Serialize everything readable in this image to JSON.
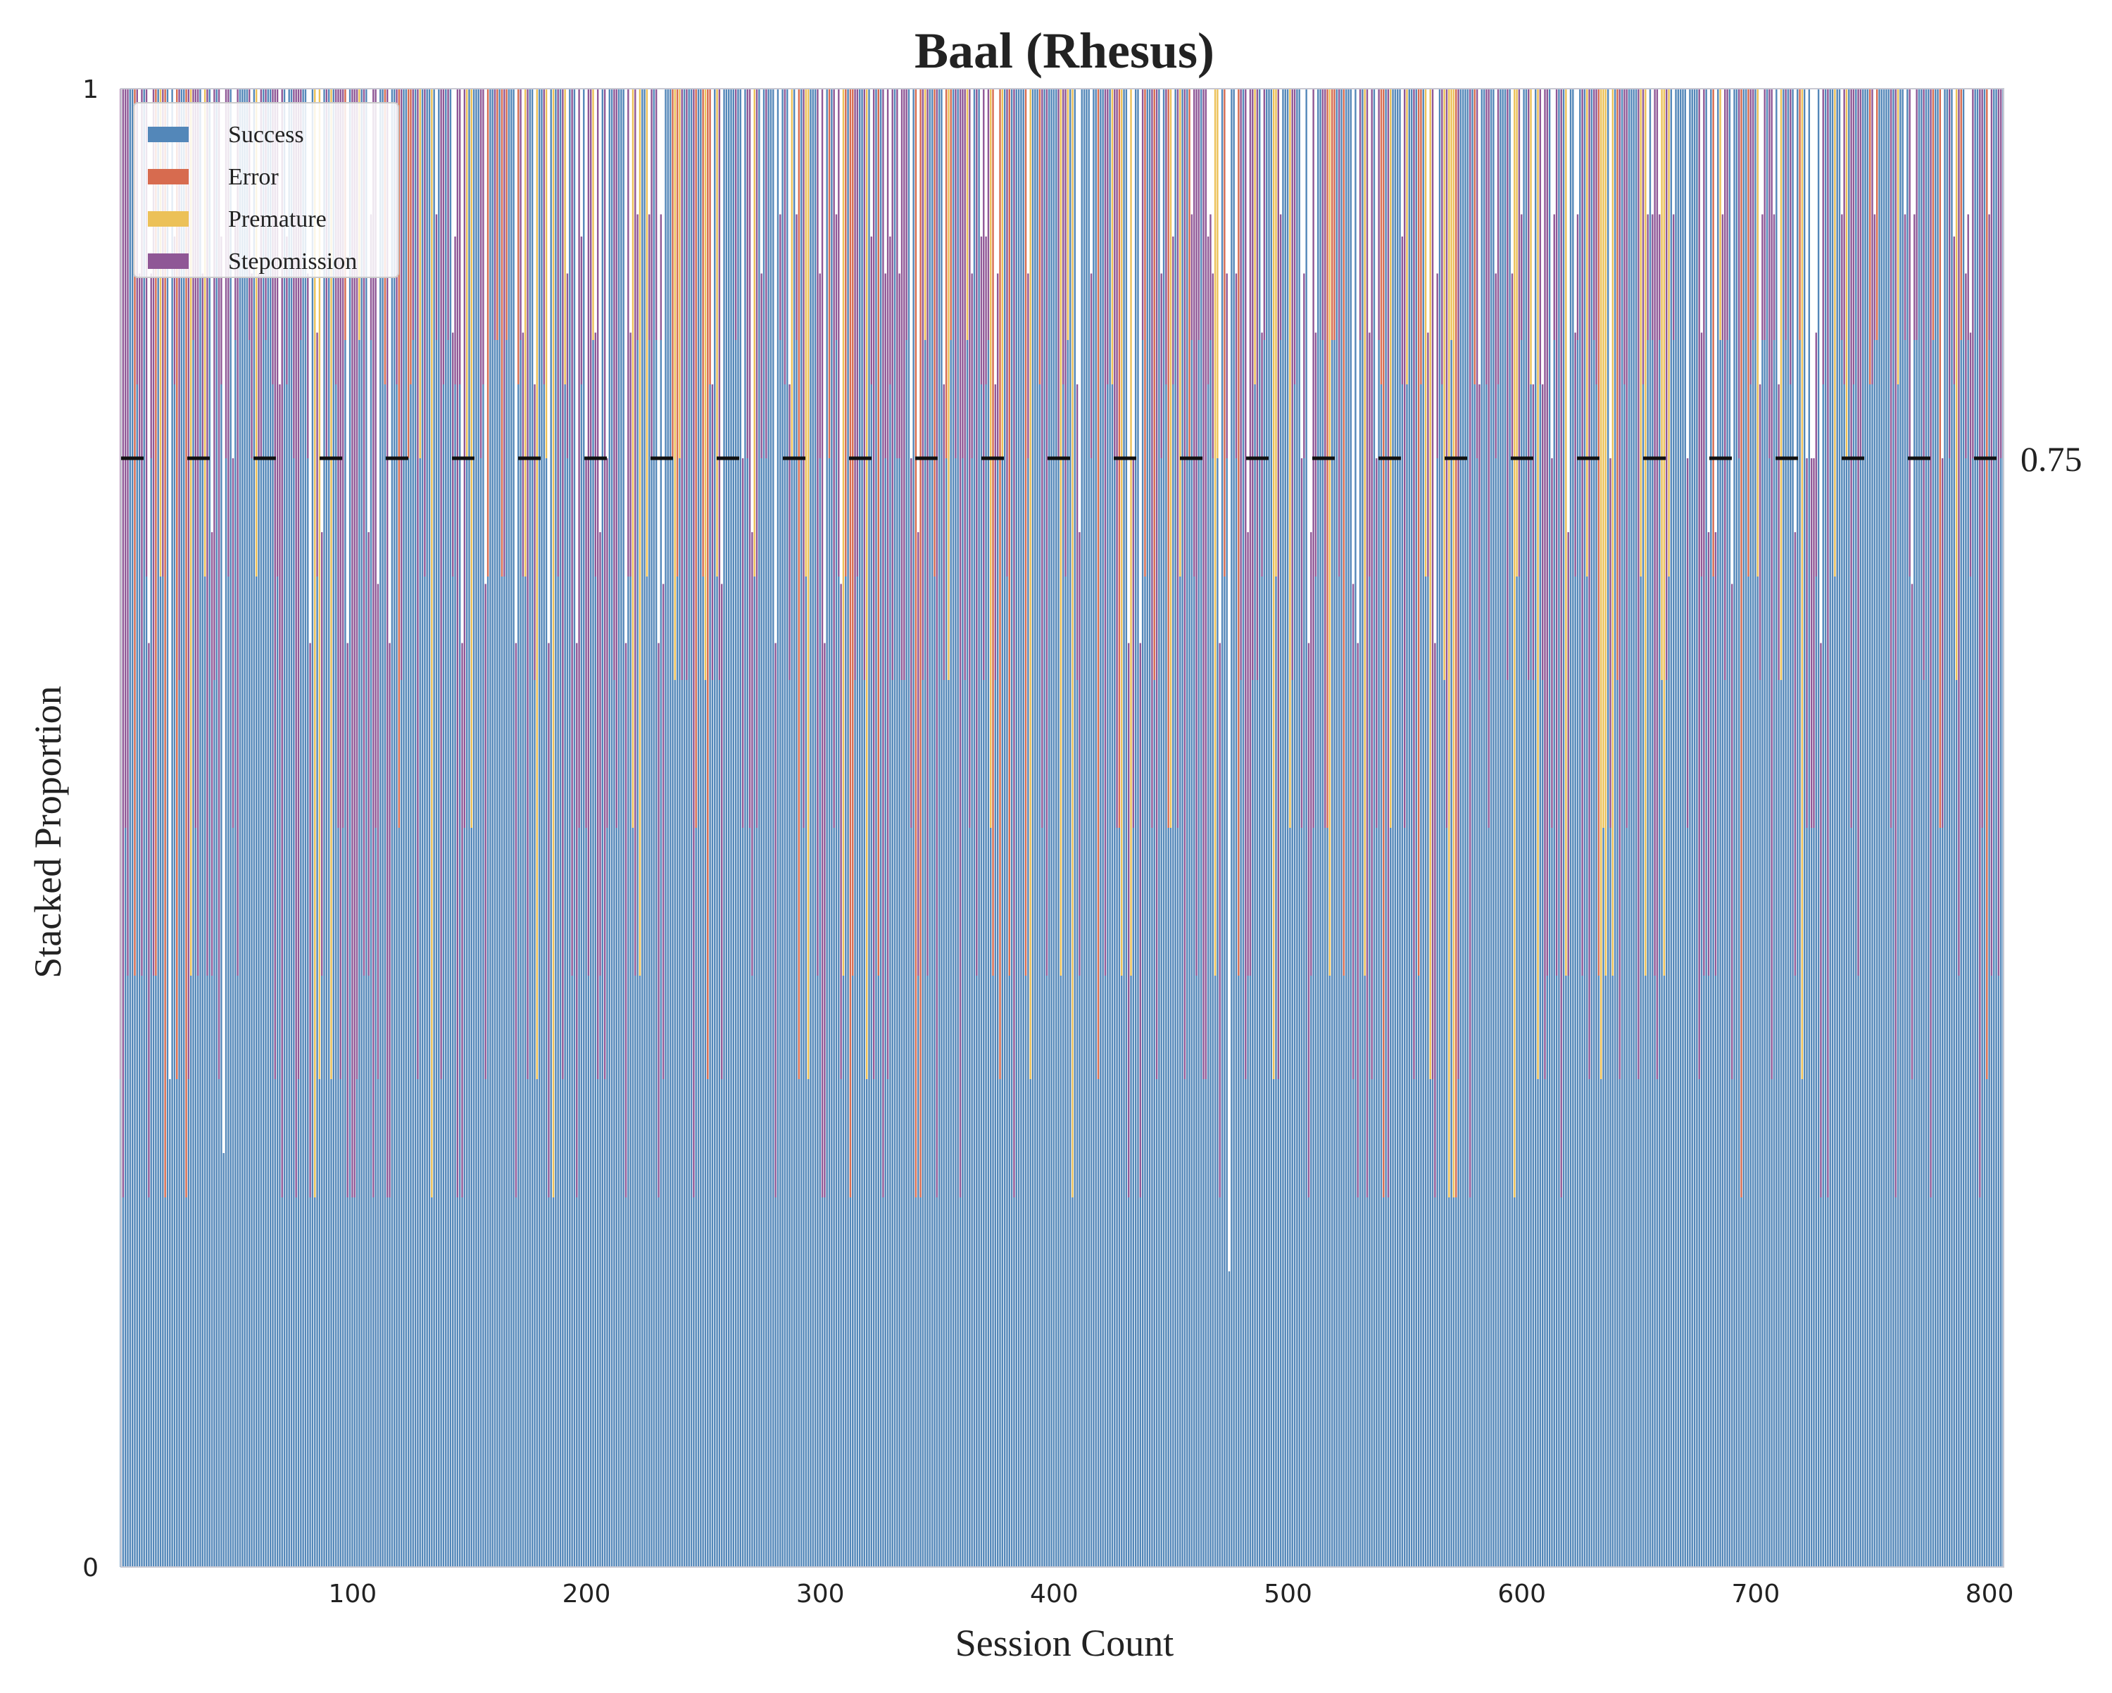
{
  "chart_data": {
    "type": "bar",
    "stacked": true,
    "title": "Baal (Rhesus)",
    "xlabel": "Session Count",
    "ylabel": "Stacked Proportion",
    "xlim": [
      1,
      806
    ],
    "ylim": [
      0,
      1
    ],
    "x_ticks": [
      100,
      200,
      300,
      400,
      500,
      600,
      700,
      800
    ],
    "y_ticks": [
      0,
      1
    ],
    "grid": false,
    "legend_position": "top-left",
    "reference_line": {
      "y": 0.75,
      "label": "0.75",
      "style": "dashed",
      "color": "#111111"
    },
    "session_count": 806,
    "series": [
      {
        "name": "Success",
        "color": "#5387b9"
      },
      {
        "name": "Error",
        "color": "#d76b4f"
      },
      {
        "name": "Premature",
        "color": "#ecc158"
      },
      {
        "name": "Stepomission",
        "color": "#8f5796"
      }
    ],
    "sample_sessions": [
      {
        "x": 22,
        "success": 0.33,
        "error": 0.0,
        "premature": 0.0,
        "stepomission": 0.0
      },
      {
        "x": 45,
        "success": 0.28,
        "error": 0.0,
        "premature": 0.0,
        "stepomission": 0.0
      },
      {
        "x": 120,
        "success": 0.5,
        "error": 0.5,
        "premature": 0.0,
        "stepomission": 0.0
      },
      {
        "x": 213,
        "success": 0.5,
        "error": 0.0,
        "premature": 0.0,
        "stepomission": 0.5
      },
      {
        "x": 320,
        "success": 0.33,
        "error": 0.0,
        "premature": 0.67,
        "stepomission": 0.0
      },
      {
        "x": 475,
        "success": 0.2,
        "error": 0.0,
        "premature": 0.0,
        "stepomission": 0.0
      },
      {
        "x": 503,
        "success": 0.8,
        "error": 0.0,
        "premature": 0.0,
        "stepomission": 0.2
      },
      {
        "x": 610,
        "success": 0.33,
        "error": 0.0,
        "premature": 0.0,
        "stepomission": 0.67
      },
      {
        "x": 745,
        "success": 0.75,
        "error": 0.0,
        "premature": 0.0,
        "stepomission": 0.25
      }
    ]
  }
}
